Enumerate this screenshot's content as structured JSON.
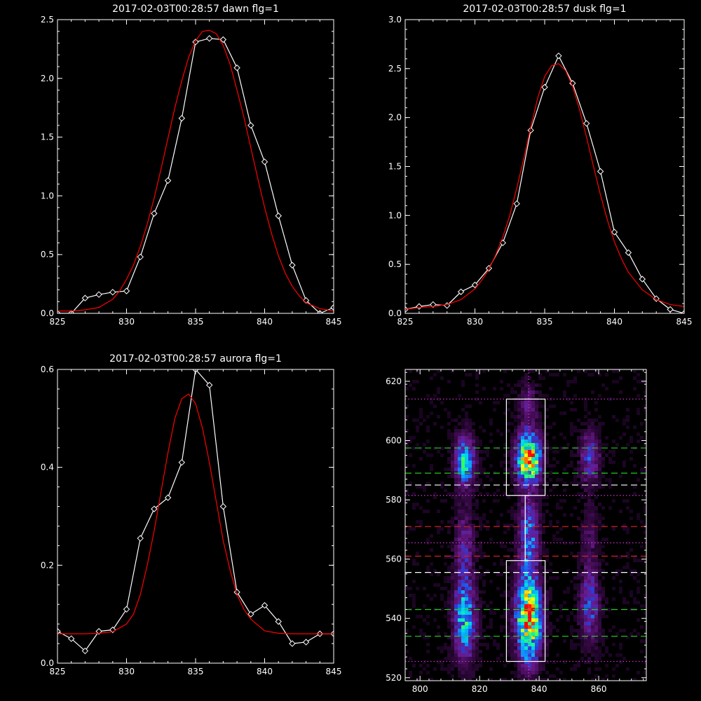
{
  "chart_data": [
    {
      "type": "line",
      "title": "2017-02-03T00:28:57 dawn flg=1",
      "xlim": [
        825,
        845
      ],
      "ylim": [
        0,
        2.5
      ],
      "xticks": [
        825,
        830,
        835,
        840,
        845
      ],
      "yticks": [
        0.0,
        0.5,
        1.0,
        1.5,
        2.0,
        2.5
      ],
      "ytick_labels": [
        "0.0",
        "0.5",
        "1.0",
        "1.5",
        "2.0",
        "2.5"
      ],
      "series": [
        {
          "color": "#ffffff",
          "marker": "diamond",
          "x": [
            825,
            826,
            827,
            828,
            829,
            830,
            831,
            832,
            833,
            834,
            835,
            836,
            837,
            838,
            839,
            840,
            841,
            842,
            843,
            844,
            845
          ],
          "y": [
            0.0,
            0.0,
            0.13,
            0.16,
            0.18,
            0.19,
            0.48,
            0.85,
            1.13,
            1.66,
            2.31,
            2.34,
            2.33,
            2.09,
            1.6,
            1.29,
            0.83,
            0.41,
            0.11,
            0.0,
            0.05
          ]
        },
        {
          "color": "#ff0000",
          "fit": "gaussian",
          "x": [
            825.0,
            826.0,
            827.0,
            828.0,
            829.0,
            829.5,
            830.0,
            830.5,
            831.0,
            831.5,
            832.0,
            832.5,
            833.0,
            833.5,
            834.0,
            834.5,
            835.0,
            835.5,
            836.0,
            836.5,
            837.0,
            837.5,
            838.0,
            838.5,
            839.0,
            839.5,
            840.0,
            840.5,
            841.0,
            841.5,
            842.0,
            842.5,
            843.0,
            844.0,
            845.0
          ],
          "y": [
            0.02,
            0.02,
            0.03,
            0.05,
            0.12,
            0.19,
            0.29,
            0.41,
            0.57,
            0.76,
            0.98,
            1.23,
            1.49,
            1.75,
            1.98,
            2.18,
            2.32,
            2.4,
            2.41,
            2.38,
            2.28,
            2.12,
            1.9,
            1.67,
            1.41,
            1.15,
            0.9,
            0.68,
            0.49,
            0.34,
            0.23,
            0.15,
            0.09,
            0.04,
            0.02
          ]
        }
      ]
    },
    {
      "type": "line",
      "title": "2017-02-03T00:28:57 dusk flg=1",
      "xlim": [
        825,
        845
      ],
      "ylim": [
        0,
        3.0
      ],
      "xticks": [
        825,
        830,
        835,
        840,
        845
      ],
      "yticks": [
        0.0,
        0.5,
        1.0,
        1.5,
        2.0,
        2.5,
        3.0
      ],
      "ytick_labels": [
        "0.0",
        "0.5",
        "1.0",
        "1.5",
        "2.0",
        "2.5",
        "3.0"
      ],
      "series": [
        {
          "color": "#ffffff",
          "marker": "diamond",
          "x": [
            825,
            826,
            827,
            828,
            829,
            830,
            831,
            832,
            833,
            834,
            835,
            836,
            837,
            838,
            839,
            840,
            841,
            842,
            843,
            844,
            845
          ],
          "y": [
            0.04,
            0.07,
            0.09,
            0.08,
            0.22,
            0.29,
            0.46,
            0.72,
            1.12,
            1.87,
            2.31,
            2.63,
            2.35,
            1.94,
            1.45,
            0.83,
            0.62,
            0.35,
            0.15,
            0.04,
            0.0
          ]
        },
        {
          "color": "#ff0000",
          "fit": "gaussian",
          "x": [
            825.0,
            826.0,
            827.0,
            828.0,
            829.0,
            830.0,
            830.5,
            831.0,
            831.5,
            832.0,
            832.5,
            833.0,
            833.5,
            834.0,
            834.5,
            835.0,
            835.5,
            836.0,
            836.5,
            837.0,
            837.5,
            838.0,
            838.5,
            839.0,
            839.5,
            840.0,
            840.5,
            841.0,
            842.0,
            843.0,
            844.0,
            845.0
          ],
          "y": [
            0.04,
            0.06,
            0.07,
            0.09,
            0.14,
            0.25,
            0.34,
            0.45,
            0.6,
            0.78,
            1.0,
            1.28,
            1.58,
            1.9,
            2.2,
            2.42,
            2.53,
            2.55,
            2.48,
            2.32,
            2.08,
            1.8,
            1.5,
            1.21,
            0.95,
            0.73,
            0.56,
            0.42,
            0.24,
            0.14,
            0.09,
            0.07
          ]
        }
      ]
    },
    {
      "type": "line",
      "title": "2017-02-03T00:28:57 aurora flg=1",
      "xlim": [
        825,
        845
      ],
      "ylim": [
        0,
        0.6
      ],
      "xticks": [
        825,
        830,
        835,
        840,
        845
      ],
      "yticks": [
        0.0,
        0.2,
        0.4,
        0.6
      ],
      "ytick_labels": [
        "0.0",
        "0.2",
        "0.4",
        "0.6"
      ],
      "series": [
        {
          "color": "#ffffff",
          "marker": "diamond",
          "x": [
            825,
            826,
            827,
            828,
            829,
            830,
            831,
            832,
            833,
            834,
            835,
            836,
            837,
            838,
            839,
            840,
            841,
            842,
            843,
            844,
            845
          ],
          "y": [
            0.065,
            0.05,
            0.025,
            0.065,
            0.068,
            0.11,
            0.255,
            0.315,
            0.338,
            0.41,
            0.6,
            0.568,
            0.32,
            0.145,
            0.1,
            0.118,
            0.085,
            0.04,
            0.043,
            0.06,
            0.06
          ]
        },
        {
          "color": "#ff0000",
          "fit": "gaussian",
          "x": [
            825.0,
            826.0,
            827.0,
            828.0,
            829.0,
            830.0,
            830.5,
            831.0,
            831.5,
            832.0,
            832.5,
            833.0,
            833.5,
            834.0,
            834.5,
            835.0,
            835.5,
            836.0,
            836.5,
            837.0,
            837.5,
            838.0,
            838.5,
            839.0,
            840.0,
            841.0,
            842.0,
            843.0,
            845.0
          ],
          "y": [
            0.06,
            0.06,
            0.06,
            0.061,
            0.064,
            0.08,
            0.1,
            0.14,
            0.2,
            0.27,
            0.35,
            0.43,
            0.5,
            0.54,
            0.55,
            0.53,
            0.48,
            0.41,
            0.33,
            0.25,
            0.19,
            0.14,
            0.11,
            0.09,
            0.066,
            0.061,
            0.06,
            0.06,
            0.06
          ]
        }
      ]
    },
    {
      "type": "heatmap",
      "title": "",
      "xlim": [
        795,
        876
      ],
      "ylim": [
        519,
        624
      ],
      "xticks": [
        800,
        820,
        840,
        860
      ],
      "yticks": [
        520,
        540,
        560,
        580,
        600,
        620
      ],
      "colormap": [
        "#000000",
        "#3a0a4a",
        "#6a1a8c",
        "#2a3cd8",
        "#0aa0ff",
        "#00e0e0",
        "#30ff60",
        "#ffff00",
        "#ff8000",
        "#ff0000"
      ],
      "blobs": [
        {
          "x": 836.5,
          "y": 594,
          "sx": 2.6,
          "sy": 5.5,
          "amp": 1.0
        },
        {
          "x": 836.5,
          "y": 540,
          "sx": 2.8,
          "sy": 7.5,
          "amp": 1.0
        },
        {
          "x": 836.5,
          "y": 560,
          "sx": 2.2,
          "sy": 9.0,
          "amp": 0.32
        },
        {
          "x": 836.5,
          "y": 572,
          "sx": 2.2,
          "sy": 6.0,
          "amp": 0.26
        },
        {
          "x": 815,
          "y": 593,
          "sx": 2.2,
          "sy": 5.5,
          "amp": 0.55
        },
        {
          "x": 815,
          "y": 540,
          "sx": 2.4,
          "sy": 9.0,
          "amp": 0.55
        },
        {
          "x": 815,
          "y": 565,
          "sx": 2.2,
          "sy": 8.0,
          "amp": 0.22
        },
        {
          "x": 857,
          "y": 594,
          "sx": 2.2,
          "sy": 5.5,
          "amp": 0.32
        },
        {
          "x": 857,
          "y": 544,
          "sx": 2.2,
          "sy": 8.0,
          "amp": 0.32
        },
        {
          "x": 857,
          "y": 566,
          "sx": 2.0,
          "sy": 8.0,
          "amp": 0.12
        },
        {
          "x": 836.5,
          "y": 612,
          "sx": 2.2,
          "sy": 5.0,
          "amp": 0.16
        },
        {
          "x": 836.5,
          "y": 526,
          "sx": 2.2,
          "sy": 4.0,
          "amp": 0.2
        }
      ],
      "hlines": [
        {
          "y": 597.5,
          "color": "#22cc22",
          "style": "dashed"
        },
        {
          "y": 589,
          "color": "#22cc22",
          "style": "dashed"
        },
        {
          "y": 585,
          "color": "#ffffff",
          "style": "dashed"
        },
        {
          "y": 571,
          "color": "#cc2222",
          "style": "dashed"
        },
        {
          "y": 561,
          "color": "#cc2222",
          "style": "dashed"
        },
        {
          "y": 555.5,
          "color": "#ffffff",
          "style": "dashed"
        },
        {
          "y": 543,
          "color": "#22cc22",
          "style": "dashed"
        },
        {
          "y": 534,
          "color": "#22cc22",
          "style": "dashed"
        },
        {
          "y": 614,
          "color": "#cc33cc",
          "style": "dotted"
        },
        {
          "y": 581.5,
          "color": "#cc33cc",
          "style": "dotted"
        },
        {
          "y": 565.5,
          "color": "#cc33cc",
          "style": "dotted"
        },
        {
          "y": 525.5,
          "color": "#cc33cc",
          "style": "dotted"
        }
      ],
      "vlines": [
        {
          "x": 836.5,
          "color": "#cc33cc",
          "style": "dotted"
        }
      ],
      "boxes": [
        {
          "x0": 829,
          "x1": 842,
          "y0": 581.5,
          "y1": 614
        },
        {
          "x0": 829,
          "x1": 842,
          "y0": 525.5,
          "y1": 559.5
        }
      ],
      "trace_line": {
        "x": 836.5,
        "y0": 559.5,
        "y1": 581.5,
        "color": "#ffffff"
      }
    }
  ]
}
